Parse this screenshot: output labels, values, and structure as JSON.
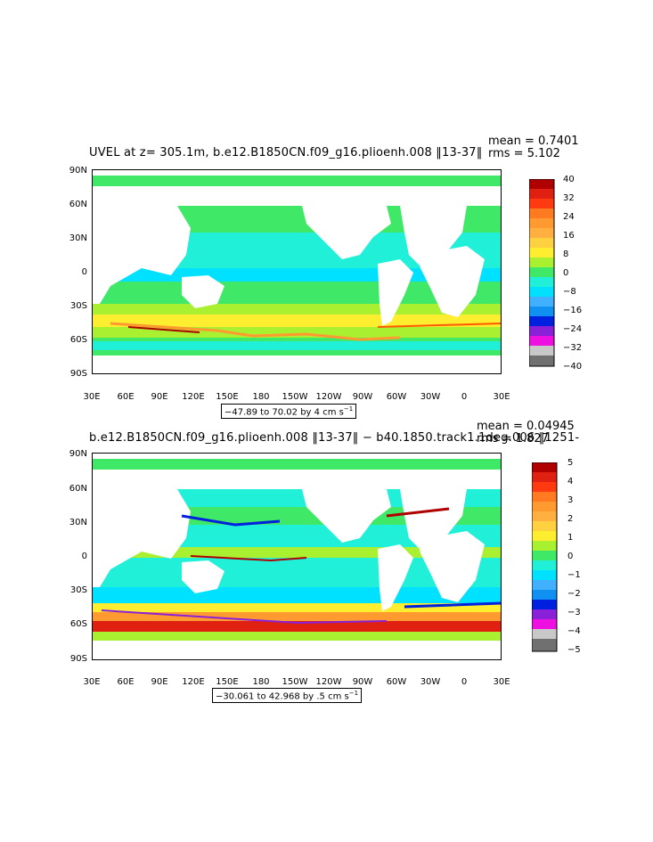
{
  "panels": [
    {
      "title": "UVEL at z= 305.1m, b.e12.B1850CN.f09_g16.plioenh.008 ‖13-37‖",
      "mean_text": "mean = 0.7401",
      "rms_text": "rms = 5.102",
      "range_text": "−47.89 to 70.02 by 4 cm s",
      "range_sup": "−1",
      "colorbar_labels": [
        "40",
        "32",
        "24",
        "16",
        "8",
        "0",
        "−8",
        "−16",
        "−24",
        "−32",
        "−40"
      ]
    },
    {
      "title": "b.e12.B1850CN.f09_g16.plioenh.008 ‖13-37‖ − b40.1850.track1.1deg.006 ‖1251-",
      "mean_text": "mean = 0.04945",
      "rms_text": "rms = 1.827",
      "range_text": "−30.061 to 42.968 by .5 cm s",
      "range_sup": "−1",
      "colorbar_labels": [
        "5",
        "4",
        "3",
        "2",
        "1",
        "0",
        "−1",
        "−2",
        "−3",
        "−4",
        "−5"
      ]
    }
  ],
  "lat_labels": [
    "90N",
    "60N",
    "30N",
    "0",
    "30S",
    "60S",
    "90S"
  ],
  "lon_labels": [
    "30E",
    "60E",
    "90E",
    "120E",
    "150E",
    "180",
    "150W",
    "120W",
    "90W",
    "60W",
    "30W",
    "0",
    "30E"
  ],
  "colors": {
    "cb_top": [
      "#b00000",
      "#e02010",
      "#ff5a00",
      "#ff9a30",
      "#ffc040",
      "#ffee30",
      "#a8f030",
      "#40e868"
    ],
    "cb_bottom": [
      "#20f0d8",
      "#00e0ff",
      "#40b0ff",
      "#1090f0",
      "#0020e0",
      "#8a20d8",
      "#ee10e0",
      "#c8c8c8",
      "#707070"
    ]
  }
}
